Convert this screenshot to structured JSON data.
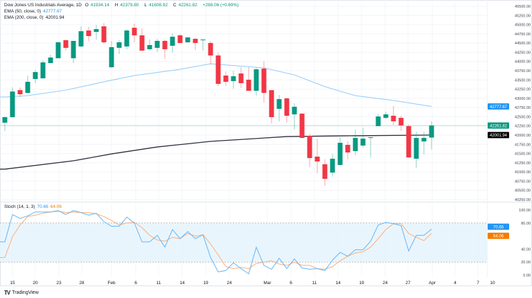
{
  "header": {
    "symbol": "Dow Jones US Industrials Average, 1D",
    "open_label": "O",
    "open": "41934.14",
    "high_label": "H",
    "high": "42379.80",
    "low_label": "L",
    "low": "41608.92",
    "close_label": "C",
    "close": "42261.82",
    "change": "+288.06 (+0.69%)",
    "ema50_label": "EMA (50, close, 0)",
    "ema50_value": "42777.67",
    "ema200_label": "EMA (200, close, 0)",
    "ema200_value": "42001.94",
    "stoch_label": "Stoch (14, 1, 3)",
    "stoch_k_value": "70.66",
    "stoch_d_value": "64.06"
  },
  "footer": {
    "brand": "TradingView"
  },
  "colors": {
    "up": "#089981",
    "down": "#f23645",
    "ema50": "#90caf9",
    "ema200": "#2a2e39",
    "stoch_k": "#64b5f6",
    "stoch_d": "#ffad7a",
    "band": "#e3f2fd",
    "ema50_tag": "#2196f3",
    "close_tag": "#089981",
    "ema200_tag": "#000000",
    "stoch_d_tag": "#f57c00"
  },
  "chart_data": [
    {
      "type": "candlestick",
      "title": "Dow Jones US Industrials Average, 1D",
      "ylim": [
        40250,
        45500
      ],
      "y_ticks": [
        "45500.00",
        "45250.00",
        "45000.00",
        "44750.00",
        "44500.00",
        "44250.00",
        "44000.00",
        "43750.00",
        "43500.00",
        "43250.00",
        "43000.00",
        "42750.00",
        "42500.00",
        "42250.00",
        "42000.00",
        "41750.00",
        "41500.00",
        "41250.00",
        "41000.00",
        "40750.00",
        "40500.00",
        "40250.00"
      ],
      "x_ticks": [
        "15",
        "20",
        "23",
        "28",
        "Feb",
        "6",
        "11",
        "14",
        "19",
        "24",
        "Mar",
        "6",
        "11",
        "14",
        "19",
        "24",
        "27",
        "Apr",
        "4",
        "7",
        "10"
      ],
      "ohlc": [
        [
          42338,
          42507,
          42112,
          42488
        ],
        [
          42488,
          43298,
          42470,
          43185
        ],
        [
          43222,
          43298,
          43034,
          43110
        ],
        [
          43147,
          43618,
          43128,
          43448
        ],
        [
          43524,
          43768,
          43411,
          43712
        ],
        [
          43542,
          44032,
          43542,
          43975
        ],
        [
          43956,
          44182,
          43956,
          44107
        ],
        [
          44088,
          44540,
          44088,
          44521
        ],
        [
          44578,
          44578,
          44295,
          44370
        ],
        [
          44088,
          44559,
          43956,
          44559
        ],
        [
          44408,
          44954,
          44389,
          44822
        ],
        [
          44841,
          44935,
          44559,
          44690
        ],
        [
          44803,
          44991,
          44596,
          44879
        ],
        [
          44954,
          45048,
          44483,
          44521
        ],
        [
          43844,
          44559,
          43825,
          44389
        ],
        [
          44370,
          44578,
          44201,
          44521
        ],
        [
          44408,
          44879,
          44333,
          44841
        ],
        [
          44916,
          45029,
          44521,
          44709
        ],
        [
          44709,
          44897,
          44276,
          44295
        ],
        [
          44333,
          44596,
          44295,
          44446
        ],
        [
          44370,
          44615,
          44258,
          44559
        ],
        [
          44559,
          44596,
          44069,
          44333
        ],
        [
          44427,
          44766,
          44239,
          44672
        ],
        [
          44709,
          44747,
          44502,
          44502
        ],
        [
          44521,
          44672,
          44502,
          44653
        ],
        [
          44615,
          44634,
          44314,
          44502
        ],
        [
          44578,
          44596,
          44295,
          44596
        ],
        [
          44502,
          44559,
          43919,
          44163
        ],
        [
          44163,
          44239,
          43335,
          43392
        ],
        [
          43618,
          43731,
          43335,
          43448
        ],
        [
          43467,
          43749,
          43260,
          43599
        ],
        [
          43674,
          43844,
          43279,
          43411
        ],
        [
          43505,
          43844,
          43204,
          43204
        ],
        [
          43204,
          43825,
          43072,
          43787
        ],
        [
          43806,
          44013,
          42884,
          43147
        ],
        [
          43222,
          43222,
          42319,
          42488
        ],
        [
          42714,
          43091,
          42376,
          42978
        ],
        [
          42997,
          43015,
          42338,
          42526
        ],
        [
          42564,
          42865,
          42150,
          42771
        ],
        [
          42583,
          42601,
          41924,
          41924
        ],
        [
          41980,
          42037,
          41133,
          41378
        ],
        [
          41416,
          41905,
          40964,
          41284
        ],
        [
          41209,
          41341,
          40625,
          40813
        ],
        [
          40983,
          41491,
          40870,
          41359
        ],
        [
          41190,
          41943,
          41171,
          41792
        ],
        [
          41736,
          41830,
          41341,
          41529
        ],
        [
          41566,
          42150,
          41453,
          41924
        ],
        [
          41717,
          42206,
          41660,
          41905
        ],
        [
          41924,
          41943,
          41396,
          41943
        ],
        [
          42244,
          42583,
          42244,
          42507
        ],
        [
          42470,
          42639,
          42432,
          42564
        ],
        [
          42526,
          42790,
          42281,
          42376
        ],
        [
          42470,
          42526,
          42112,
          42263
        ],
        [
          42244,
          42281,
          41378,
          41396
        ],
        [
          41359,
          42093,
          41115,
          41924
        ],
        [
          41830,
          42093,
          41472,
          41924
        ],
        [
          41934.14,
          42379.8,
          41608.92,
          42261.82
        ]
      ],
      "ema50": [
        [
          1,
          43034
        ],
        [
          4,
          43072
        ],
        [
          9,
          43222
        ],
        [
          14,
          43448
        ],
        [
          18,
          43618
        ],
        [
          24,
          43787
        ],
        [
          28,
          43937
        ],
        [
          35,
          43825
        ],
        [
          39,
          43636
        ],
        [
          43,
          43317
        ],
        [
          47,
          43072
        ],
        [
          52,
          42940
        ],
        [
          57,
          42777.67
        ]
      ],
      "ema200": [
        [
          1,
          41077
        ],
        [
          10,
          41303
        ],
        [
          15,
          41491
        ],
        [
          21,
          41679
        ],
        [
          28,
          41830
        ],
        [
          38,
          41961
        ],
        [
          45,
          41980
        ],
        [
          57,
          42001.94
        ]
      ],
      "last_price": 42261.82
    },
    {
      "type": "line",
      "title": "Stoch (14, 1, 3)",
      "ylim": [
        0,
        100
      ],
      "y_ticks": [
        "100.00",
        "80.00",
        "40.00",
        "20.00",
        "0.00"
      ],
      "band": [
        20,
        80
      ],
      "k": [
        51,
        93,
        87,
        91,
        97,
        97,
        97,
        99,
        93,
        99,
        96,
        92,
        95,
        82,
        75,
        75,
        89,
        80,
        51,
        51,
        61,
        43,
        70,
        56,
        67,
        56,
        62,
        27,
        5,
        7,
        19,
        10,
        2,
        43,
        15,
        9,
        26,
        10,
        25,
        11,
        9,
        10,
        7,
        23,
        35,
        29,
        39,
        39,
        52,
        77,
        81,
        79,
        76,
        37,
        61,
        61,
        70.66
      ],
      "d": [
        27,
        59,
        77,
        90,
        92,
        95,
        97,
        98,
        96,
        97,
        96,
        96,
        94,
        90,
        84,
        77,
        80,
        81,
        73,
        61,
        54,
        52,
        58,
        56,
        64,
        60,
        62,
        48,
        31,
        13,
        10,
        12,
        10,
        18,
        20,
        22,
        17,
        15,
        20,
        15,
        15,
        10,
        9,
        13,
        22,
        29,
        34,
        36,
        43,
        56,
        70,
        79,
        79,
        64,
        58,
        53,
        64.06
      ]
    }
  ]
}
